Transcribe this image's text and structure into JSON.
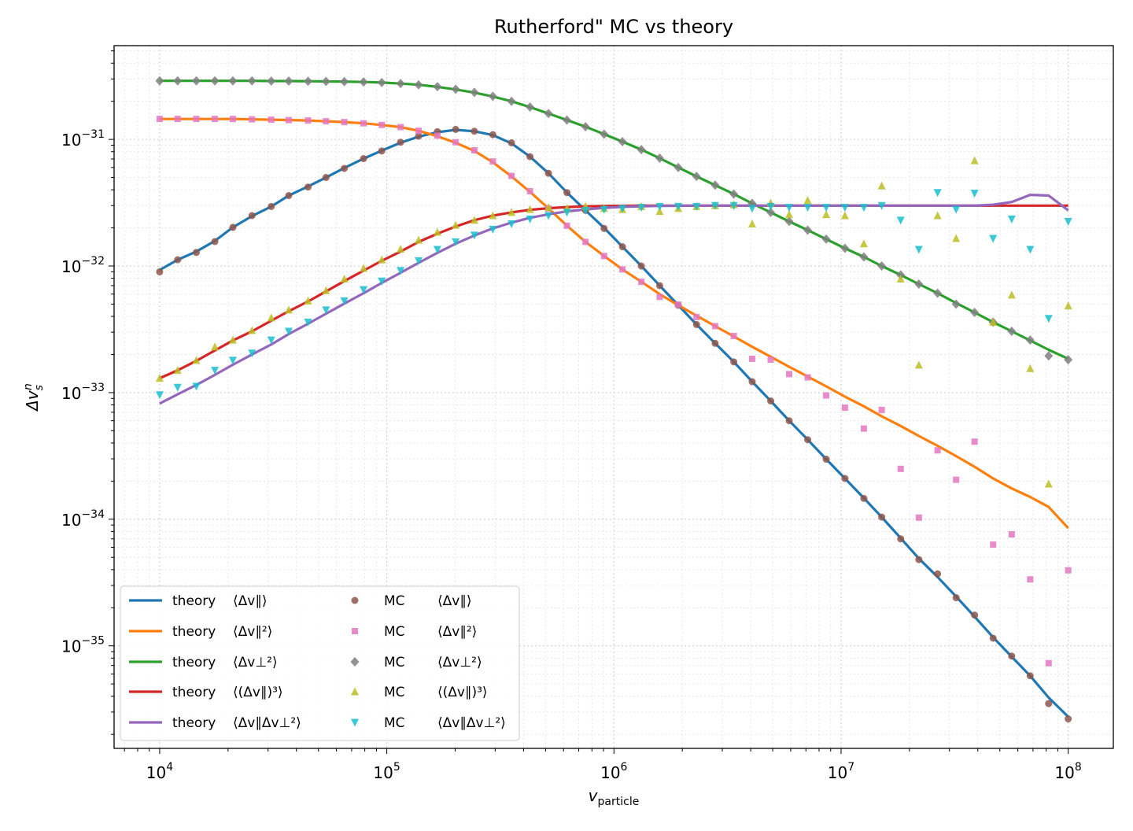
{
  "chart_data": {
    "type": "line",
    "title": "Rutherford\" MC vs theory",
    "xlabel": {
      "main": "v",
      "sub": "particle"
    },
    "ylabel": {
      "main": "Δv",
      "sub": "s",
      "sup": "n"
    },
    "xscale": "log",
    "yscale": "log",
    "xlim": [
      6300,
      158000000
    ],
    "ylim": [
      1.55e-36,
      5.5e-31
    ],
    "grid": true,
    "legend_position": "lower-left",
    "x_ticks": [
      {
        "base": "10",
        "exp": "4",
        "value": 10000
      },
      {
        "base": "10",
        "exp": "5",
        "value": 100000
      },
      {
        "base": "10",
        "exp": "6",
        "value": 1000000
      },
      {
        "base": "10",
        "exp": "7",
        "value": 10000000
      },
      {
        "base": "10",
        "exp": "8",
        "value": 100000000
      }
    ],
    "y_ticks": [
      {
        "base": "10",
        "exp": "−35",
        "value": 1e-35
      },
      {
        "base": "10",
        "exp": "−34",
        "value": 1e-34
      },
      {
        "base": "10",
        "exp": "−33",
        "value": 1e-33
      },
      {
        "base": "10",
        "exp": "−32",
        "value": 1e-32
      },
      {
        "base": "10",
        "exp": "−31",
        "value": 1e-31
      }
    ],
    "theory_x": [
      10000,
      12000,
      14500,
      17500,
      21000,
      25500,
      31000,
      37000,
      45000,
      54000,
      65000,
      79000,
      95000,
      115000,
      138000,
      167000,
      201000,
      243000,
      293000,
      354000,
      427000,
      515000,
      621000,
      750000,
      905000,
      1090000,
      1320000,
      1590000,
      1920000,
      2310000,
      2790000,
      3370000,
      4060000,
      4900000,
      5910000,
      7130000,
      8600000,
      10400000,
      12600000,
      15100000,
      18300000,
      22000000,
      26600000,
      32100000,
      38700000,
      46700000,
      56400000,
      68000000,
      82000000,
      100000000
    ],
    "theory_series": [
      {
        "name": "theory  ⟨Δv∥⟩",
        "color": "#1f77b4",
        "values": [
          9.3e-33,
          1.12e-32,
          1.3e-32,
          1.58e-32,
          2.02e-32,
          2.48e-32,
          2.95e-32,
          3.6e-32,
          4.25e-32,
          5e-32,
          5.95e-32,
          7.05e-32,
          8.15e-32,
          9.4e-32,
          1.05e-31,
          1.14e-31,
          1.19e-31,
          1.16e-31,
          1.08e-31,
          9.3e-32,
          7.3e-32,
          5.4e-32,
          3.8e-32,
          2.75e-32,
          2e-32,
          1.42e-32,
          1e-32,
          7e-33,
          4.9e-33,
          3.45e-33,
          2.45e-33,
          1.75e-33,
          1.22e-33,
          8.6e-34,
          6e-34,
          4.25e-34,
          2.98e-34,
          2.1e-34,
          1.47e-34,
          1.04e-34,
          7.1e-35,
          4.9e-35,
          3.5e-35,
          2.45e-35,
          1.7e-35,
          1.17e-35,
          8.2e-36,
          5.8e-36,
          3.9e-36,
          2.75e-36
        ]
      },
      {
        "name": "theory  ⟨Δv∥²⟩",
        "color": "#ff7f0e",
        "values": [
          1.45e-31,
          1.45e-31,
          1.45e-31,
          1.45e-31,
          1.45e-31,
          1.44e-31,
          1.43e-31,
          1.42e-31,
          1.41e-31,
          1.39e-31,
          1.37e-31,
          1.34e-31,
          1.3e-31,
          1.25e-31,
          1.17e-31,
          1.06e-31,
          9.4e-32,
          8.1e-32,
          6.6e-32,
          5.1e-32,
          3.85e-32,
          2.85e-32,
          2.08e-32,
          1.55e-32,
          1.2e-32,
          9.4e-33,
          7.5e-33,
          6e-33,
          4.9e-33,
          4.05e-33,
          3.35e-33,
          2.78e-33,
          2.3e-33,
          1.92e-33,
          1.6e-33,
          1.34e-33,
          1.12e-33,
          9.3e-34,
          7.8e-34,
          6.5e-34,
          5.45e-34,
          4.55e-34,
          3.8e-34,
          3.15e-34,
          2.6e-34,
          2.1e-34,
          1.75e-34,
          1.5e-34,
          1.25e-34,
          8.5e-35
        ]
      },
      {
        "name": "theory  ⟨Δv⊥²⟩",
        "color": "#2ca02c",
        "values": [
          2.9e-31,
          2.9e-31,
          2.9e-31,
          2.9e-31,
          2.9e-31,
          2.9e-31,
          2.89e-31,
          2.89e-31,
          2.88e-31,
          2.87e-31,
          2.86e-31,
          2.84e-31,
          2.81e-31,
          2.76e-31,
          2.7e-31,
          2.6e-31,
          2.48e-31,
          2.34e-31,
          2.18e-31,
          2e-31,
          1.8e-31,
          1.6e-31,
          1.42e-31,
          1.26e-31,
          1.1e-31,
          9.6e-32,
          8.3e-32,
          7.1e-32,
          6e-32,
          5.1e-32,
          4.35e-32,
          3.7e-32,
          3.12e-32,
          2.65e-32,
          2.25e-32,
          1.92e-32,
          1.63e-32,
          1.38e-32,
          1.18e-32,
          1e-32,
          8.5e-33,
          7.2e-33,
          6.1e-33,
          5.1e-33,
          4.3e-33,
          3.6e-33,
          3.05e-33,
          2.58e-33,
          2.18e-33,
          1.85e-33
        ]
      },
      {
        "name": "theory  ⟨(Δv∥)³⟩",
        "color": "#d62728",
        "values": [
          1.3e-33,
          1.5e-33,
          1.78e-33,
          2.15e-33,
          2.58e-33,
          3.05e-33,
          3.7e-33,
          4.4e-33,
          5.25e-33,
          6.3e-33,
          7.6e-33,
          9.2e-33,
          1.1e-32,
          1.3e-32,
          1.55e-32,
          1.8e-32,
          2.05e-32,
          2.3e-32,
          2.5e-32,
          2.65e-32,
          2.78e-32,
          2.86e-32,
          2.92e-32,
          2.96e-32,
          2.98e-32,
          2.99e-32,
          3e-32,
          3e-32,
          3e-32,
          3e-32,
          3e-32,
          3e-32,
          3e-32,
          3e-32,
          3e-32,
          3e-32,
          3e-32,
          3e-32,
          3e-32,
          3e-32,
          3e-32,
          3e-32,
          3e-32,
          3e-32,
          3e-32,
          3e-32,
          3e-32,
          3e-32,
          3e-32,
          3e-32
        ]
      },
      {
        "name": "theory  ⟨Δv∥Δv⊥²⟩",
        "color": "#9467bd",
        "values": [
          8.2e-34,
          9.7e-34,
          1.15e-33,
          1.38e-33,
          1.66e-33,
          2e-33,
          2.4e-33,
          2.9e-33,
          3.5e-33,
          4.2e-33,
          5.05e-33,
          6.1e-33,
          7.35e-33,
          8.85e-33,
          1.06e-32,
          1.27e-32,
          1.5e-32,
          1.74e-32,
          1.98e-32,
          2.2e-32,
          2.4e-32,
          2.56e-32,
          2.7e-32,
          2.8e-32,
          2.88e-32,
          2.93e-32,
          2.96e-32,
          2.98e-32,
          2.99e-32,
          3e-32,
          3e-32,
          3e-32,
          3e-32,
          3e-32,
          3e-32,
          3e-32,
          3e-32,
          3e-32,
          3e-32,
          3e-32,
          3e-32,
          3e-32,
          3e-32,
          3e-32,
          3e-32,
          3.05e-32,
          3.2e-32,
          3.65e-32,
          3.6e-32,
          2.75e-32
        ]
      }
    ],
    "mc_x": [
      10000,
      12000,
      14500,
      17500,
      21000,
      25500,
      31000,
      37000,
      45000,
      54000,
      65000,
      79000,
      95000,
      115000,
      138000,
      167000,
      201000,
      243000,
      293000,
      354000,
      427000,
      515000,
      621000,
      750000,
      905000,
      1090000,
      1320000,
      1590000,
      1920000,
      2310000,
      2790000,
      3370000,
      4060000,
      4900000,
      5910000,
      7130000,
      8600000,
      10400000,
      12600000,
      15100000,
      18300000,
      22000000,
      26600000,
      32100000,
      38700000,
      46700000,
      56400000,
      68000000,
      82000000,
      100000000
    ],
    "mc_series": [
      {
        "name": "MC      ⟨Δv∥⟩",
        "marker": "circle",
        "color": "#8c564b",
        "values": [
          9e-33,
          1.12e-32,
          1.28e-32,
          1.56e-32,
          2.02e-32,
          2.5e-32,
          2.95e-32,
          3.6e-32,
          4.2e-32,
          5e-32,
          5.9e-32,
          7.05e-32,
          8.1e-32,
          9.5e-32,
          1.06e-31,
          1.15e-31,
          1.2e-31,
          1.16e-31,
          1.09e-31,
          9.4e-32,
          7.3e-32,
          5.4e-32,
          3.8e-32,
          2.75e-32,
          1.98e-32,
          1.42e-32,
          1e-32,
          7e-33,
          4.9e-33,
          3.45e-33,
          2.45e-33,
          1.75e-33,
          1.22e-33,
          8.6e-34,
          6e-34,
          4.25e-34,
          2.98e-34,
          2.1e-34,
          1.46e-34,
          1.04e-34,
          7e-35,
          4.8e-35,
          3.7e-35,
          2.4e-35,
          1.75e-35,
          1.15e-35,
          8.3e-36,
          5.8e-36,
          3.5e-36,
          2.65e-36
        ]
      },
      {
        "name": "MC      ⟨Δv∥²⟩",
        "marker": "square",
        "color": "#e377c2",
        "values": [
          1.45e-31,
          1.45e-31,
          1.45e-31,
          1.45e-31,
          1.45e-31,
          1.44e-31,
          1.43e-31,
          1.42e-31,
          1.41e-31,
          1.39e-31,
          1.37e-31,
          1.34e-31,
          1.3e-31,
          1.25e-31,
          1.17e-31,
          1.07e-31,
          9.5e-32,
          8.2e-32,
          6.7e-32,
          5.15e-32,
          3.9e-32,
          2.85e-32,
          2.08e-32,
          1.55e-32,
          1.2e-32,
          9.4e-33,
          7.5e-33,
          5.7e-33,
          4.95e-33,
          3.95e-33,
          3.35e-33,
          2.8e-33,
          1.85e-33,
          1.82e-33,
          1.4e-33,
          1.32e-33,
          9.5e-34,
          7.6e-34,
          5.2e-34,
          7.3e-34,
          2.5e-34,
          1.03e-34,
          3.5e-34,
          2.05e-34,
          4.1e-34,
          6.3e-35,
          7.6e-35,
          3.35e-35,
          7.3e-36,
          3.95e-35
        ]
      },
      {
        "name": "MC      ⟨Δv⊥²⟩",
        "marker": "diamond",
        "color": "#7f7f7f",
        "values": [
          2.9e-31,
          2.9e-31,
          2.9e-31,
          2.9e-31,
          2.9e-31,
          2.9e-31,
          2.89e-31,
          2.89e-31,
          2.88e-31,
          2.87e-31,
          2.86e-31,
          2.84e-31,
          2.81e-31,
          2.76e-31,
          2.7e-31,
          2.61e-31,
          2.49e-31,
          2.35e-31,
          2.19e-31,
          2e-31,
          1.8e-31,
          1.6e-31,
          1.42e-31,
          1.26e-31,
          1.1e-31,
          9.6e-32,
          8.3e-32,
          7.1e-32,
          6e-32,
          5.1e-32,
          4.35e-32,
          3.7e-32,
          3.12e-32,
          2.65e-32,
          2.25e-32,
          1.92e-32,
          1.63e-32,
          1.38e-32,
          1.18e-32,
          1e-32,
          8.5e-33,
          7.2e-33,
          6.1e-33,
          5e-33,
          4.3e-33,
          3.6e-33,
          3.05e-33,
          2.6e-33,
          1.95e-33,
          1.82e-33
        ]
      },
      {
        "name": "MC      ⟨(Δv∥)³⟩",
        "marker": "triangle-up",
        "color": "#bcbd22",
        "values": [
          1.3e-33,
          1.5e-33,
          1.8e-33,
          2.3e-33,
          2.6e-33,
          3.1e-33,
          3.9e-33,
          4.5e-33,
          5.3e-33,
          6.4e-33,
          7.9e-33,
          9.6e-33,
          1.12e-32,
          1.36e-32,
          1.6e-32,
          1.85e-32,
          2.1e-32,
          2.3e-32,
          2.5e-32,
          2.65e-32,
          2.8e-32,
          2.9e-32,
          2.85e-32,
          2.95e-32,
          2.85e-32,
          2.8e-32,
          2.95e-32,
          2.7e-32,
          2.85e-32,
          2.95e-32,
          3e-32,
          3.05e-32,
          2.15e-32,
          3.15e-32,
          2.55e-32,
          3.3e-32,
          2.55e-32,
          2.5e-32,
          1.5e-32,
          4.3e-32,
          7.9e-33,
          1.65e-33,
          2.5e-32,
          1.65e-32,
          6.8e-32,
          3.6e-33,
          5.9e-33,
          1.55e-33,
          1.9e-34,
          4.85e-33
        ]
      },
      {
        "name": "MC      ⟨Δv∥Δv⊥²⟩",
        "marker": "triangle-down",
        "color": "#17becf",
        "values": [
          9.6e-34,
          1.1e-33,
          1.12e-33,
          1.5e-33,
          1.8e-33,
          2.05e-33,
          2.6e-33,
          3.05e-33,
          3.6e-33,
          4.5e-33,
          5.3e-33,
          6.5e-33,
          7.6e-33,
          9.2e-33,
          1.1e-32,
          1.35e-32,
          1.55e-32,
          1.75e-32,
          1.95e-32,
          2.15e-32,
          2.35e-32,
          2.5e-32,
          2.65e-32,
          2.75e-32,
          2.8e-32,
          2.85e-32,
          2.9e-32,
          2.95e-32,
          2.95e-32,
          2.95e-32,
          3e-32,
          3e-32,
          2.85e-32,
          2.95e-32,
          2.9e-32,
          2.9e-32,
          2.9e-32,
          2.9e-32,
          2.9e-32,
          3e-32,
          2.3e-32,
          1.35e-32,
          3.8e-32,
          2.8e-32,
          3.75e-32,
          1.65e-32,
          2.35e-32,
          1.35e-32,
          3.85e-33,
          2.25e-32
        ]
      }
    ],
    "legend": {
      "theory": [
        {
          "word": "theory",
          "label": "⟨Δv∥⟩"
        },
        {
          "word": "theory",
          "label": "⟨Δv∥²⟩"
        },
        {
          "word": "theory",
          "label": "⟨Δv⊥²⟩"
        },
        {
          "word": "theory",
          "label": "⟨(Δv∥)³⟩"
        },
        {
          "word": "theory",
          "label": "⟨Δv∥Δv⊥²⟩"
        }
      ],
      "mc": [
        {
          "word": "MC",
          "label": "⟨Δv∥⟩"
        },
        {
          "word": "MC",
          "label": "⟨Δv∥²⟩"
        },
        {
          "word": "MC",
          "label": "⟨Δv⊥²⟩"
        },
        {
          "word": "MC",
          "label": "⟨(Δv∥)³⟩"
        },
        {
          "word": "MC",
          "label": "⟨Δv∥Δv⊥²⟩"
        }
      ]
    }
  }
}
